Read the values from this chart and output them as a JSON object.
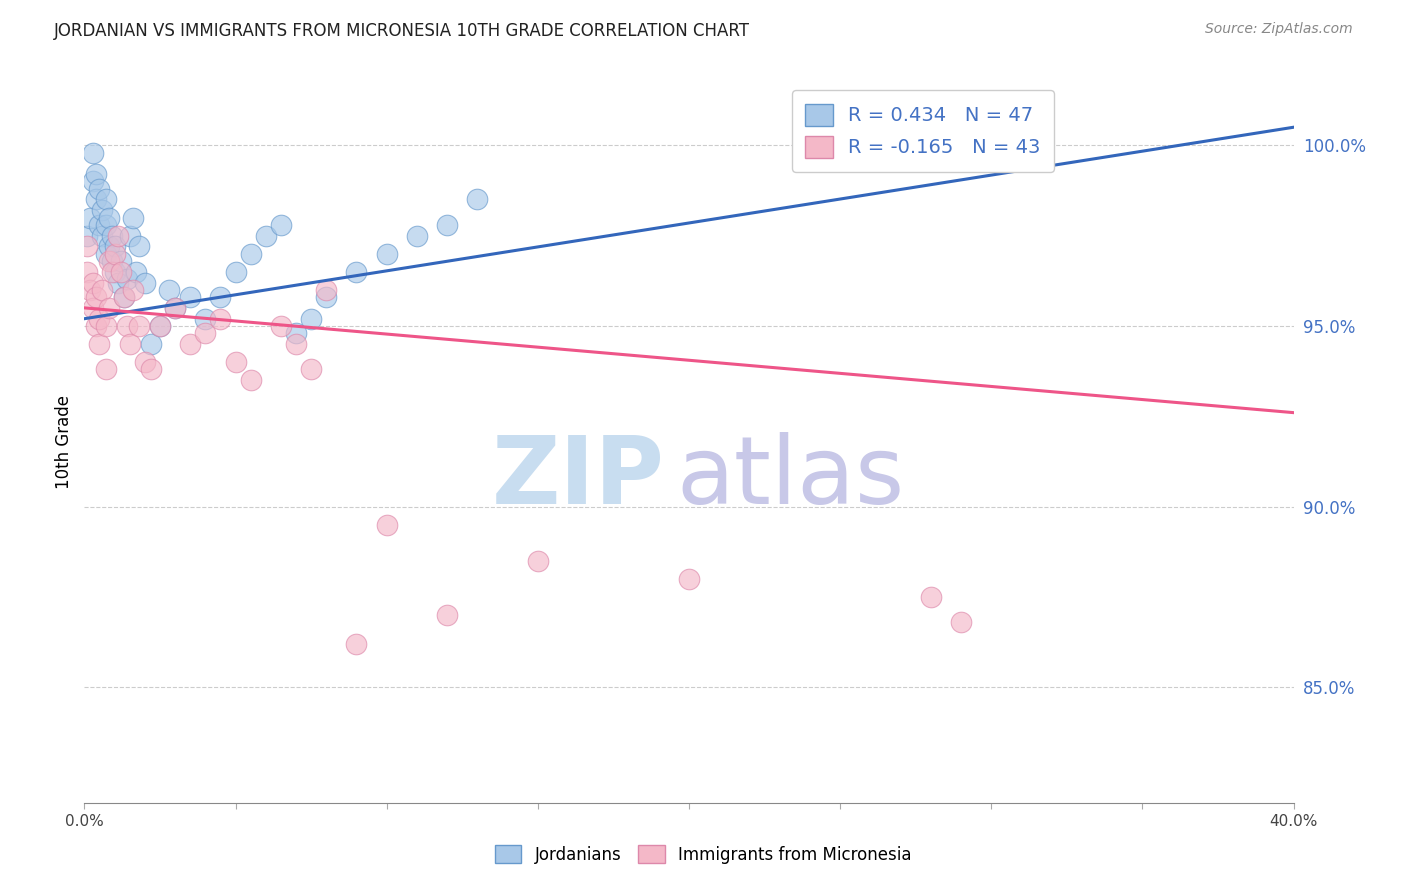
{
  "title": "JORDANIAN VS IMMIGRANTS FROM MICRONESIA 10TH GRADE CORRELATION CHART",
  "source": "Source: ZipAtlas.com",
  "ylabel": "10th Grade",
  "ylabel_right_labels": [
    "100.0%",
    "95.0%",
    "90.0%",
    "85.0%"
  ],
  "ylabel_right_values": [
    1.0,
    0.95,
    0.9,
    0.85
  ],
  "xmin": 0.0,
  "xmax": 0.4,
  "ymin": 0.818,
  "ymax": 1.018,
  "R_jordanian": 0.434,
  "N_jordanian": 47,
  "R_micronesia": -0.165,
  "N_micronesia": 43,
  "color_jordanian": "#a8c8e8",
  "color_jordanian_edge": "#6699cc",
  "color_jordanian_line": "#3366bb",
  "color_micronesia": "#f4b8c8",
  "color_micronesia_edge": "#dd88aa",
  "color_micronesia_line": "#ee5588",
  "jordanian_x": [
    0.001,
    0.002,
    0.003,
    0.003,
    0.004,
    0.004,
    0.005,
    0.005,
    0.006,
    0.006,
    0.007,
    0.007,
    0.007,
    0.008,
    0.008,
    0.009,
    0.009,
    0.01,
    0.01,
    0.011,
    0.012,
    0.013,
    0.014,
    0.015,
    0.016,
    0.017,
    0.018,
    0.02,
    0.022,
    0.025,
    0.028,
    0.03,
    0.035,
    0.04,
    0.045,
    0.05,
    0.055,
    0.06,
    0.065,
    0.07,
    0.075,
    0.08,
    0.09,
    0.1,
    0.11,
    0.12,
    0.13
  ],
  "jordanian_y": [
    0.975,
    0.98,
    0.99,
    0.998,
    0.985,
    0.992,
    0.978,
    0.988,
    0.975,
    0.982,
    0.97,
    0.978,
    0.985,
    0.972,
    0.98,
    0.968,
    0.975,
    0.965,
    0.972,
    0.962,
    0.968,
    0.958,
    0.963,
    0.975,
    0.98,
    0.965,
    0.972,
    0.962,
    0.945,
    0.95,
    0.96,
    0.955,
    0.958,
    0.952,
    0.958,
    0.965,
    0.97,
    0.975,
    0.978,
    0.948,
    0.952,
    0.958,
    0.965,
    0.97,
    0.975,
    0.978,
    0.985
  ],
  "micronesia_x": [
    0.001,
    0.001,
    0.002,
    0.003,
    0.003,
    0.004,
    0.004,
    0.005,
    0.005,
    0.006,
    0.007,
    0.007,
    0.008,
    0.008,
    0.009,
    0.01,
    0.011,
    0.012,
    0.013,
    0.014,
    0.015,
    0.016,
    0.018,
    0.02,
    0.022,
    0.025,
    0.03,
    0.035,
    0.04,
    0.045,
    0.05,
    0.055,
    0.065,
    0.07,
    0.075,
    0.08,
    0.09,
    0.1,
    0.12,
    0.15,
    0.2,
    0.28,
    0.29
  ],
  "micronesia_y": [
    0.965,
    0.972,
    0.96,
    0.955,
    0.962,
    0.95,
    0.958,
    0.945,
    0.952,
    0.96,
    0.938,
    0.95,
    0.968,
    0.955,
    0.965,
    0.97,
    0.975,
    0.965,
    0.958,
    0.95,
    0.945,
    0.96,
    0.95,
    0.94,
    0.938,
    0.95,
    0.955,
    0.945,
    0.948,
    0.952,
    0.94,
    0.935,
    0.95,
    0.945,
    0.938,
    0.96,
    0.862,
    0.895,
    0.87,
    0.885,
    0.88,
    0.875,
    0.868
  ],
  "jline_x0": 0.0,
  "jline_y0": 0.952,
  "jline_x1": 0.4,
  "jline_y1": 1.005,
  "mline_x0": 0.0,
  "mline_y0": 0.955,
  "mline_x1": 0.4,
  "mline_y1": 0.926
}
